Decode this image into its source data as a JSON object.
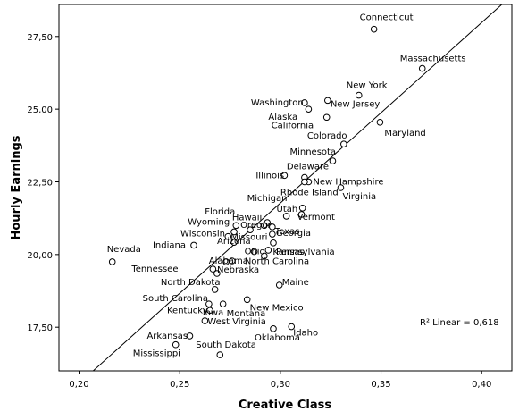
{
  "chart_data": {
    "type": "scatter",
    "title": "",
    "xlabel": "Creative Class",
    "ylabel": "Hourly Earnings",
    "xlim": [
      0.19,
      0.415
    ],
    "ylim": [
      16.0,
      28.6
    ],
    "x_ticks": [
      0.2,
      0.25,
      0.3,
      0.35,
      0.4
    ],
    "x_tick_labels": [
      "0,20",
      "0,25",
      "0,30",
      "0,35",
      "0,40"
    ],
    "y_ticks": [
      17.5,
      20.0,
      22.5,
      25.0,
      27.5
    ],
    "y_tick_labels": [
      "17,50",
      "20,00",
      "22,50",
      "25,00",
      "27,50"
    ],
    "grid": false,
    "fit_line": {
      "label": "R² Linear = 0,618",
      "x": [
        0.207,
        0.41
      ],
      "y": [
        16.0,
        28.6
      ]
    },
    "points": [
      {
        "label": "Connecticut",
        "x": 0.3465,
        "y": 27.75
      },
      {
        "label": "Massachusetts",
        "x": 0.3705,
        "y": 26.4
      },
      {
        "label": "New York",
        "x": 0.339,
        "y": 25.48
      },
      {
        "label": "Washington",
        "x": 0.312,
        "y": 25.22
      },
      {
        "label": "Alaska",
        "x": 0.314,
        "y": 25.0
      },
      {
        "label": "New Jersey",
        "x": 0.3235,
        "y": 25.3
      },
      {
        "label": "California",
        "x": 0.323,
        "y": 24.72
      },
      {
        "label": "Maryland",
        "x": 0.3495,
        "y": 24.55
      },
      {
        "label": "Colorado",
        "x": 0.3315,
        "y": 23.8
      },
      {
        "label": "Minnesota",
        "x": 0.326,
        "y": 23.22
      },
      {
        "label": "Delaware",
        "x": 0.312,
        "y": 22.65
      },
      {
        "label": "Illinois",
        "x": 0.302,
        "y": 22.72
      },
      {
        "label": "New Hampshire",
        "x": 0.314,
        "y": 22.5
      },
      {
        "label": "Rhode Island",
        "x": 0.312,
        "y": 22.5
      },
      {
        "label": "Virginia",
        "x": 0.33,
        "y": 22.3
      },
      {
        "label": "Michigan",
        "x": 0.311,
        "y": 21.6
      },
      {
        "label": "Utah",
        "x": 0.3105,
        "y": 21.38
      },
      {
        "label": "Vermont",
        "x": 0.303,
        "y": 21.32
      },
      {
        "label": "Florida",
        "x": 0.2935,
        "y": 21.1
      },
      {
        "label": "Hawaii",
        "x": 0.292,
        "y": 21.0
      },
      {
        "label": "Texas",
        "x": 0.296,
        "y": 20.95
      },
      {
        "label": "Wyoming",
        "x": 0.278,
        "y": 21.0
      },
      {
        "label": "Oregon",
        "x": 0.285,
        "y": 20.85
      },
      {
        "label": "Wisconsin",
        "x": 0.277,
        "y": 20.78
      },
      {
        "label": "Georgia",
        "x": 0.296,
        "y": 20.7
      },
      {
        "label": "Indiana",
        "x": 0.257,
        "y": 20.32
      },
      {
        "label": "Missouri",
        "x": 0.274,
        "y": 20.62
      },
      {
        "label": "Arizona",
        "x": 0.277,
        "y": 20.42
      },
      {
        "label": "Pennsylvania",
        "x": 0.2965,
        "y": 20.4
      },
      {
        "label": "Nevada",
        "x": 0.2165,
        "y": 19.75
      },
      {
        "label": "Alabama",
        "x": 0.276,
        "y": 19.78
      },
      {
        "label": "Ohio",
        "x": 0.287,
        "y": 20.1
      },
      {
        "label": "Kansas",
        "x": 0.294,
        "y": 20.15
      },
      {
        "label": "Tennessee",
        "x": 0.2665,
        "y": 19.5
      },
      {
        "label": "Nebraska",
        "x": 0.273,
        "y": 19.75
      },
      {
        "label": "North Carolina",
        "x": 0.292,
        "y": 19.95
      },
      {
        "label": "North Dakota",
        "x": 0.2685,
        "y": 19.35
      },
      {
        "label": "Maine",
        "x": 0.2995,
        "y": 18.95
      },
      {
        "label": "South Carolina",
        "x": 0.2675,
        "y": 18.8
      },
      {
        "label": "New Mexico",
        "x": 0.2835,
        "y": 18.45
      },
      {
        "label": "Montana",
        "x": 0.2715,
        "y": 18.3
      },
      {
        "label": "Iowa",
        "x": 0.2645,
        "y": 18.3
      },
      {
        "label": "Kentucky",
        "x": 0.265,
        "y": 18.08
      },
      {
        "label": "West Virginia",
        "x": 0.2625,
        "y": 17.72
      },
      {
        "label": "Idaho",
        "x": 0.3055,
        "y": 17.52
      },
      {
        "label": "Oklahoma",
        "x": 0.2965,
        "y": 17.45
      },
      {
        "label": "Arkansas",
        "x": 0.255,
        "y": 17.2
      },
      {
        "label": "Mississippi",
        "x": 0.248,
        "y": 16.9
      },
      {
        "label": "South Dakota",
        "x": 0.27,
        "y": 16.55
      }
    ]
  }
}
